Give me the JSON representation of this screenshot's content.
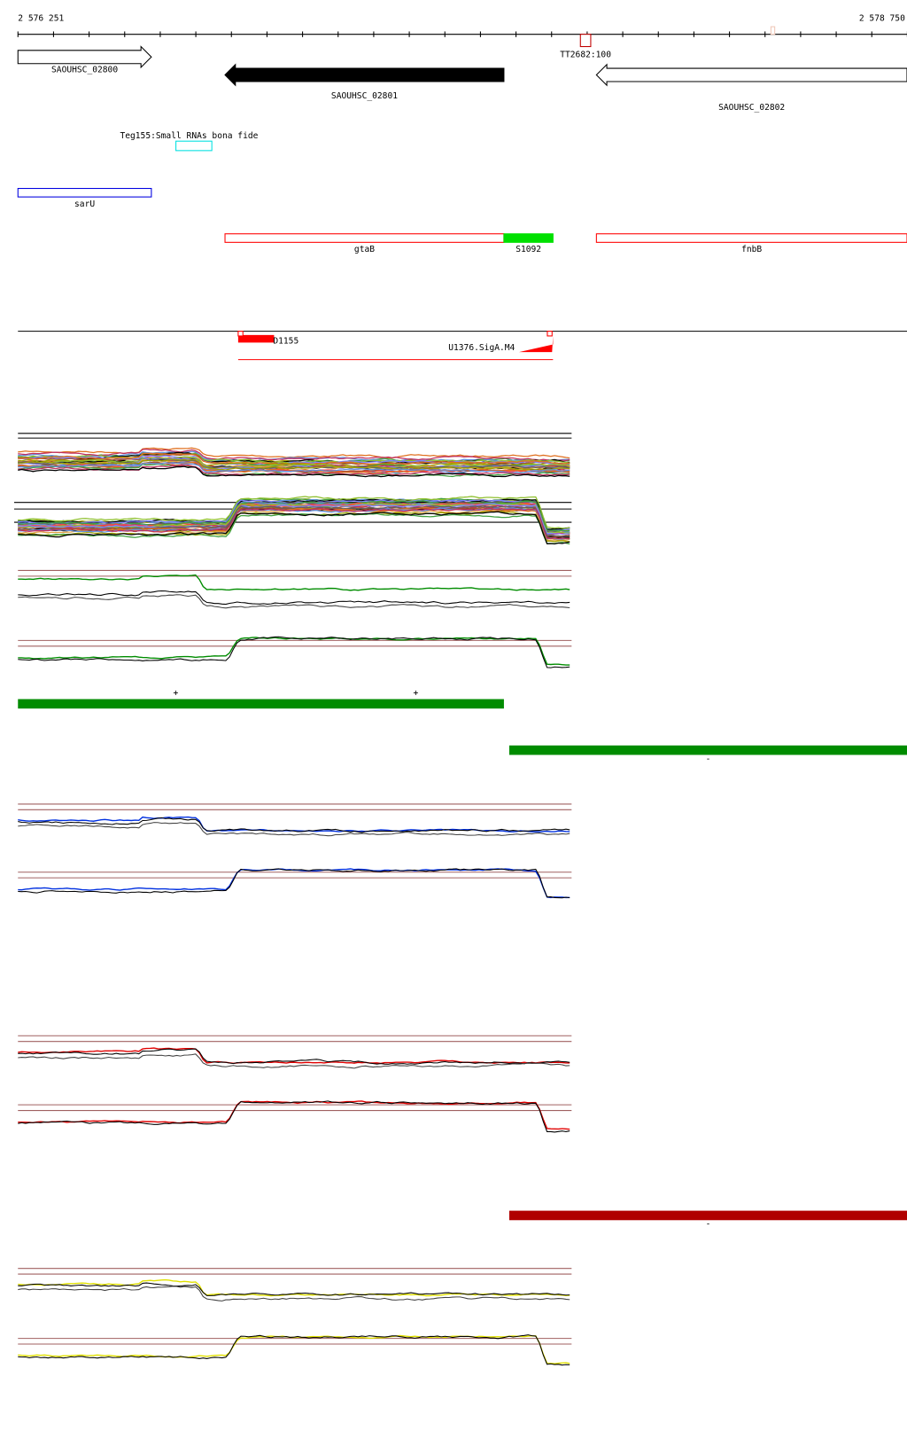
{
  "ruler": {
    "start_label": "2 576 251",
    "end_label": "2 578 750",
    "start": 2576251,
    "end": 2578750,
    "tick_step_bp": 100
  },
  "features": {
    "genes": [
      {
        "name": "SAOUHSC_02800",
        "start": 2576251,
        "end": 2576626,
        "strand": "+",
        "fill": "#ffffff"
      },
      {
        "name": "SAOUHSC_02801",
        "start": 2576833,
        "end": 2577617,
        "strand": "-",
        "fill": "#000000"
      },
      {
        "name": "SAOUHSC_02802",
        "start": 2577877,
        "end": 2578750,
        "strand": "-",
        "fill": "#ffffff"
      }
    ],
    "terminator": {
      "label": "TT2682:100",
      "start": 2577832,
      "end": 2577861,
      "color": "#c00000"
    },
    "srna": {
      "label": "Teg155:Small RNAs bona fide",
      "start": 2576695,
      "end": 2576796,
      "color": "#00e0e0"
    },
    "sarU": {
      "label": "sarU",
      "start": 2576251,
      "end": 2576626,
      "color": "#0000e0"
    },
    "operon": [
      {
        "label": "gtaB",
        "start": 2576833,
        "end": 2577617,
        "color": "#ff0000",
        "filled": false
      },
      {
        "label": "S1092",
        "start": 2577617,
        "end": 2577755,
        "color": "#00e000",
        "filled": true
      },
      {
        "label": "fnbB",
        "start": 2577877,
        "end": 2578750,
        "color": "#ff0000",
        "filled": false
      }
    ],
    "transcripts": {
      "d_label": "D1155",
      "u_label": "U1376.SigA.M4",
      "start": 2576870,
      "end": 2577755,
      "color": "#ff0000"
    }
  },
  "expression_bars": [
    {
      "strand": "+",
      "start": 2576251,
      "end": 2577617,
      "color": "#008c00",
      "marks": [
        "+",
        "+"
      ]
    },
    {
      "strand": "-",
      "start": 2577632,
      "end": 2578750,
      "color": "#008c00",
      "marks": [
        "-"
      ]
    },
    {
      "strand": "-",
      "start": 2577632,
      "end": 2578750,
      "color": "#b00000",
      "marks": [
        "-"
      ]
    }
  ],
  "track_colors": {
    "green": "#008c00",
    "blue": "#0030e0",
    "red": "#e00000",
    "yellow": "#e0e000",
    "reference": "#a06060"
  }
}
